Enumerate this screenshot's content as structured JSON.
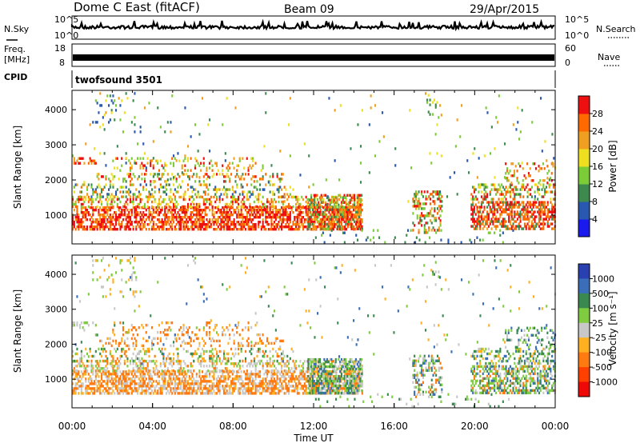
{
  "header": {
    "station": "Dome C East (fitACF)",
    "beam": "Beam 09",
    "date": "29/Apr/2015"
  },
  "panels": {
    "nsky_label": "N.Sky",
    "nsky_ticks": [
      "10^5",
      "10^0"
    ],
    "nsearch_label": "N.Search",
    "nsearch_ticks": [
      "10^5",
      "10^0"
    ],
    "freq_label": "Freq.",
    "freq_unit": "[MHz]",
    "freq_ticks": [
      "18",
      "8"
    ],
    "nave_label": "Nave",
    "nave_ticks": [
      "60",
      "0"
    ],
    "cpid_label": "CPID",
    "cpid_value": "twofsound 3501"
  },
  "colors": {
    "power": [
      "#1a1aee",
      "#2858b0",
      "#3e8a4e",
      "#7ccc38",
      "#eee020",
      "#f0a020",
      "#ff6a00",
      "#ee1010"
    ],
    "velocity": [
      "#2840b0",
      "#3a6eb8",
      "#3a8a50",
      "#80cc40",
      "#c8c8c8",
      "#ffb020",
      "#ff7a10",
      "#ff4000",
      "#ee0808"
    ]
  },
  "chart_data": [
    {
      "type": "heatmap",
      "name": "power",
      "ylabel": "Slant Range [km]",
      "yticks": [
        1000,
        2000,
        3000,
        4000
      ],
      "ylim": [
        180,
        4550
      ],
      "xlim_hours": [
        0,
        24
      ],
      "colorbar_label": "Power [dB]",
      "colorbar_ticks": [
        "4",
        "8",
        "12",
        "16",
        "20",
        "24",
        "28"
      ]
    },
    {
      "type": "heatmap",
      "name": "velocity",
      "ylabel": "Slant Range [km]",
      "yticks": [
        1000,
        2000,
        3000,
        4000
      ],
      "ylim": [
        180,
        4550
      ],
      "xlim_hours": [
        0,
        24
      ],
      "colorbar_label": "Velocity [m s⁻¹]",
      "colorbar_ticks": [
        "1000",
        "500",
        "100",
        "25",
        "-25",
        "-100",
        "-500",
        "-1000"
      ]
    }
  ],
  "x_axis": {
    "label": "Time UT",
    "tick_labels": [
      "00:00",
      "04:00",
      "08:00",
      "12:00",
      "16:00",
      "20:00",
      "00:00"
    ]
  }
}
